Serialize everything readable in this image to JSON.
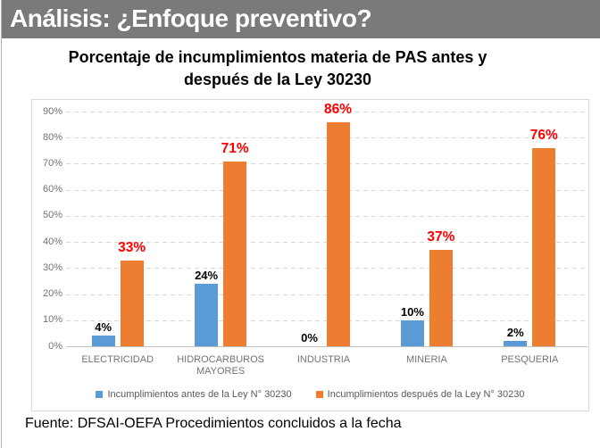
{
  "page": {
    "header_title": "Análisis: ¿Enfoque preventivo?",
    "footer_source": "Fuente: DFSAI-OEFA Procedimientos concluidos a la fecha"
  },
  "chart_data": {
    "type": "bar",
    "title_lines": [
      "Porcentaje de incumplimientos materia de PAS antes y",
      "después de la Ley 30230"
    ],
    "categories": [
      "ELECTRICIDAD",
      "HIDROCARBUROS MAYORES",
      "INDUSTRIA",
      "MINERIA",
      "PESQUERIA"
    ],
    "series": [
      {
        "name": "Incumplimientos antes de la Ley N° 30230",
        "color": "#5B9BD5",
        "label_color": "#000000",
        "values": [
          4,
          24,
          0,
          10,
          2
        ],
        "labels": [
          "4%",
          "24%",
          "0%",
          "10%",
          "2%"
        ]
      },
      {
        "name": "Incumplimientos después de la Ley N° 30230",
        "color": "#ED7D31",
        "label_color": "#FF0000",
        "values": [
          33,
          71,
          86,
          37,
          76
        ],
        "labels": [
          "33%",
          "71%",
          "86%",
          "37%",
          "76%"
        ]
      }
    ],
    "ylim": [
      0,
      90
    ],
    "ytick_step": 10,
    "ytick_labels": [
      "0%",
      "10%",
      "20%",
      "30%",
      "40%",
      "50%",
      "60%",
      "70%",
      "80%",
      "90%"
    ],
    "grid": "horizontal-dashed",
    "legend_position": "bottom",
    "colors": {
      "grid": "#D9D9D9",
      "axis": "#BFBFBF",
      "tick_text": "#737373",
      "legend_text": "#595959",
      "header_bg": "#7A7A7A",
      "header_text": "#FFFFFF"
    }
  }
}
